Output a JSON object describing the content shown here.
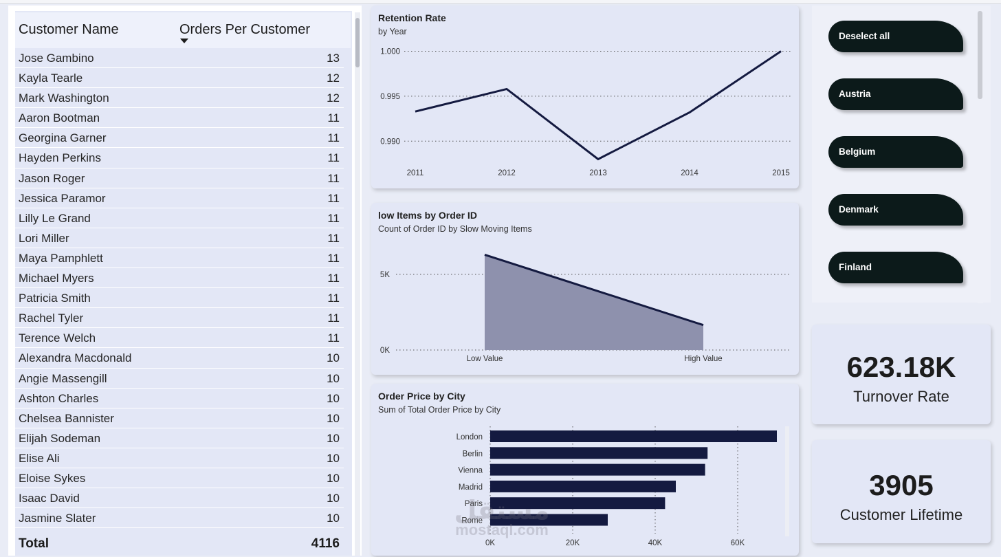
{
  "table": {
    "header_name": "Customer Name",
    "header_orders": "Orders Per Customer",
    "rows": [
      {
        "name": "Jose Gambino",
        "orders": "13"
      },
      {
        "name": "Kayla Tearle",
        "orders": "12"
      },
      {
        "name": "Mark Washington",
        "orders": "12"
      },
      {
        "name": "Aaron Bootman",
        "orders": "11"
      },
      {
        "name": "Georgina Garner",
        "orders": "11"
      },
      {
        "name": "Hayden Perkins",
        "orders": "11"
      },
      {
        "name": "Jason Roger",
        "orders": "11"
      },
      {
        "name": "Jessica Paramor",
        "orders": "11"
      },
      {
        "name": "Lilly Le Grand",
        "orders": "11"
      },
      {
        "name": "Lori Miller",
        "orders": "11"
      },
      {
        "name": "Maya Pamphlett",
        "orders": "11"
      },
      {
        "name": "Michael Myers",
        "orders": "11"
      },
      {
        "name": "Patricia Smith",
        "orders": "11"
      },
      {
        "name": "Rachel Tyler",
        "orders": "11"
      },
      {
        "name": "Terence Welch",
        "orders": "11"
      },
      {
        "name": "Alexandra Macdonald",
        "orders": "10"
      },
      {
        "name": "Angie Massengill",
        "orders": "10"
      },
      {
        "name": "Ashton Charles",
        "orders": "10"
      },
      {
        "name": "Chelsea Bannister",
        "orders": "10"
      },
      {
        "name": "Elijah Sodeman",
        "orders": "10"
      },
      {
        "name": "Elise Ali",
        "orders": "10"
      },
      {
        "name": "Eloise Sykes",
        "orders": "10"
      },
      {
        "name": "Isaac David",
        "orders": "10"
      },
      {
        "name": "Jasmine Slater",
        "orders": "10"
      }
    ],
    "total_label": "Total",
    "total_value": "4116"
  },
  "retention": {
    "title": "Retention Rate",
    "subtitle": "by Year"
  },
  "slow_items": {
    "title": "low Items by Order ID",
    "subtitle": "Count of Order ID by Slow Moving Items"
  },
  "city": {
    "title": "Order Price by City",
    "subtitle": "Sum of Total Order Price by City"
  },
  "slicer": {
    "items": [
      "Deselect all",
      "Austria",
      "Belgium",
      "Denmark",
      "Finland"
    ]
  },
  "kpis": {
    "turnover_value": "623.18K",
    "turnover_label": "Turnover Rate",
    "lifetime_value": "3905",
    "lifetime_label": "Customer Lifetime"
  },
  "watermark": {
    "arabic": "مستقل",
    "latin": "mostaql.com"
  },
  "colors": {
    "navy": "#141a40",
    "area_fill": "#8e91ad",
    "card_bg": "#e3e7f6",
    "pill_bg": "#0c1a1a"
  },
  "chart_data": [
    {
      "type": "line",
      "title": "Retention Rate",
      "subtitle": "by Year",
      "x": [
        "2011",
        "2012",
        "2013",
        "2014",
        "2015"
      ],
      "series": [
        {
          "values": [
            0.9933,
            0.9958,
            0.988,
            0.9932,
            1.0
          ]
        }
      ],
      "y_ticks": [
        "0.990",
        "0.995",
        "1.000"
      ],
      "ylim": [
        0.9875,
        1.0005
      ],
      "grid": true
    },
    {
      "type": "area",
      "title": "low Items by Order ID",
      "subtitle": "Count of Order ID by Slow Moving Items",
      "categories": [
        "Low Value",
        "High Value"
      ],
      "values": [
        6300,
        1650
      ],
      "y_ticks": [
        "0K",
        "5K"
      ],
      "ylim": [
        0,
        7000
      ],
      "grid": true
    },
    {
      "type": "bar",
      "orientation": "horizontal",
      "title": "Order Price by City",
      "subtitle": "Sum of Total Order Price by City",
      "categories": [
        "London",
        "Berlin",
        "Vienna",
        "Madrid",
        "Paris",
        "Rome"
      ],
      "values": [
        69500,
        52700,
        52100,
        45000,
        42400,
        28500
      ],
      "x_ticks": [
        "0K",
        "20K",
        "40K",
        "60K"
      ],
      "xlim": [
        0,
        70000
      ],
      "grid": true
    }
  ]
}
